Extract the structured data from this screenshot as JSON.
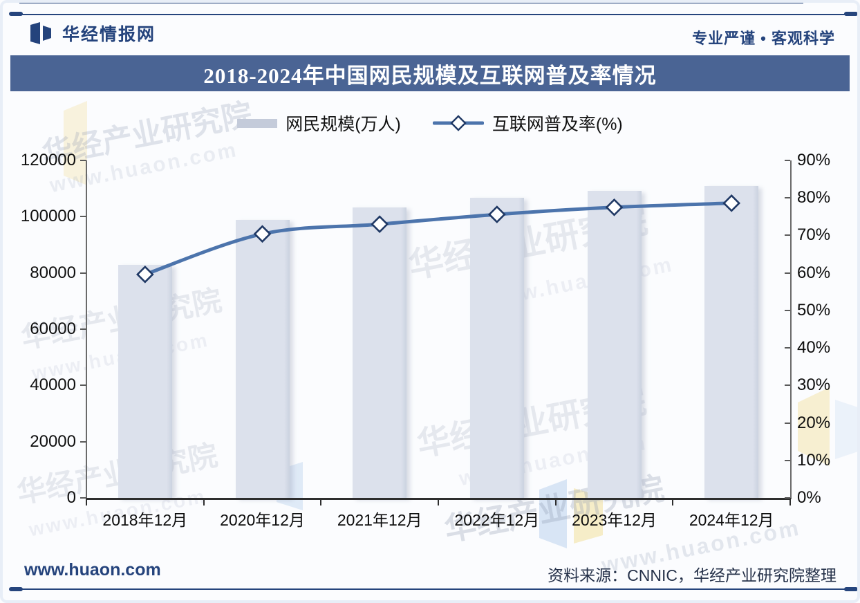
{
  "header": {
    "brand": "华经情报网",
    "tagline": "专业严谨 • 客观科学"
  },
  "title": "2018-2024年中国网民规模及互联网普及率情况",
  "legend": {
    "bar_label": "网民规模(万人)",
    "line_label": "互联网普及率(%)"
  },
  "chart_data": {
    "type": "bar+line combo",
    "categories": [
      "2018年12月",
      "2020年12月",
      "2021年12月",
      "2022年12月",
      "2023年12月",
      "2024年12月"
    ],
    "series": [
      {
        "name": "网民规模(万人)",
        "type": "bar",
        "axis": "left",
        "values": [
          82851,
          98899,
          103195,
          106744,
          109200,
          110800
        ]
      },
      {
        "name": "互联网普及率(%)",
        "type": "line",
        "axis": "right",
        "values": [
          59.6,
          70.4,
          73.0,
          75.6,
          77.5,
          78.6
        ]
      }
    ],
    "left_axis": {
      "min": 0,
      "max": 120000,
      "step": 20000
    },
    "right_axis": {
      "min": 0,
      "max": 90,
      "step": 10,
      "suffix": "%"
    },
    "grid": false,
    "legend_position": "top-center",
    "marker": "diamond"
  },
  "footer": {
    "url": "www.huaon.com",
    "source": "资料来源：CNNIC，华经产业研究院整理"
  },
  "watermark": {
    "text": "华经产业研究院",
    "url": "www.huaon.com"
  },
  "colors": {
    "bar": "#DCE1EC",
    "legend_bar_swatch": "#C4CBDA",
    "line": "#4C74AC",
    "marker_fill": "#FFFFFF",
    "marker_stroke": "#1F3864",
    "title_bg": "#4A6494",
    "navy": "#24437C",
    "axis_text": "#0E0E0E"
  }
}
